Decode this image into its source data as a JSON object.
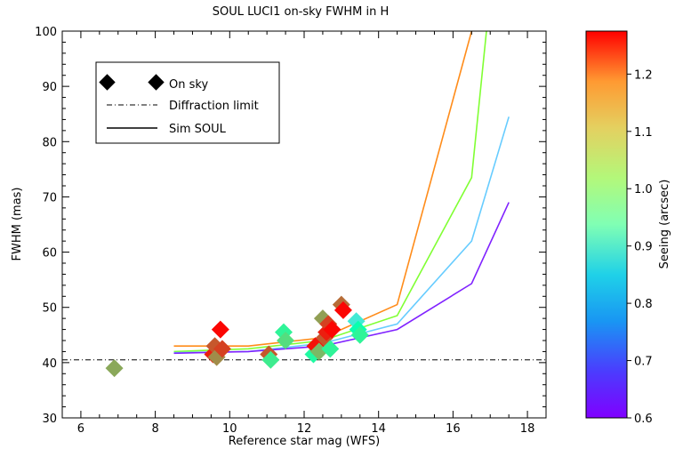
{
  "chart_data": {
    "type": "scatter",
    "title": "SOUL LUCI1 on-sky FWHM in H",
    "xlabel": "Reference star mag (WFS)",
    "ylabel": "FWHM (mas)",
    "xlim": [
      5.5,
      18.5
    ],
    "ylim": [
      30,
      100
    ],
    "xticks": [
      "6",
      "8",
      "10",
      "12",
      "14",
      "16",
      "18"
    ],
    "yticks": [
      "30",
      "40",
      "50",
      "60",
      "70",
      "80",
      "90",
      "100"
    ],
    "diffraction_limit": 40.5,
    "legend": {
      "entries": [
        "On sky",
        "Diffraction limit",
        "Sim SOUL"
      ],
      "placement": "top-left"
    },
    "colorbar": {
      "label": "Seeing (arcsec)",
      "range": [
        0.6,
        1.275
      ],
      "ticks": [
        "0.6",
        "0.7",
        "0.8",
        "0.9",
        "1.0",
        "1.1",
        "1.2"
      ],
      "colormap": "rainbow"
    },
    "sim_series": [
      {
        "seeing": 1.25,
        "color": "#ff8c1a",
        "x": [
          8.5,
          10.5,
          12.5,
          14.5,
          16.5
        ],
        "y": [
          43.0,
          43.0,
          44.5,
          50.5,
          100
        ]
      },
      {
        "seeing": 1.0,
        "color": "#80ff33",
        "x": [
          8.5,
          10.5,
          12.5,
          14.5,
          16.5,
          16.9
        ],
        "y": [
          42.0,
          42.5,
          44.0,
          48.5,
          73.5,
          100
        ]
      },
      {
        "seeing": 0.8,
        "color": "#66ccff",
        "x": [
          8.5,
          10.5,
          12.5,
          14.5,
          16.5,
          17.5
        ],
        "y": [
          41.8,
          42.0,
          43.5,
          47.0,
          62.0,
          84.5
        ]
      },
      {
        "seeing": 0.6,
        "color": "#8022ff",
        "x": [
          8.5,
          10.5,
          12.5,
          14.5,
          16.5,
          17.5
        ],
        "y": [
          41.7,
          42.0,
          43.0,
          46.0,
          54.3,
          69.0
        ]
      }
    ],
    "on_sky_points": [
      {
        "x": 6.9,
        "y": 39.0,
        "seeing": 1.12
      },
      {
        "x": 9.55,
        "y": 41.5,
        "seeing": 1.25
      },
      {
        "x": 9.6,
        "y": 43.0,
        "seeing": 1.2
      },
      {
        "x": 9.65,
        "y": 41.0,
        "seeing": 1.15
      },
      {
        "x": 9.75,
        "y": 46.0,
        "seeing": 1.27
      },
      {
        "x": 9.8,
        "y": 42.5,
        "seeing": 1.22
      },
      {
        "x": 11.05,
        "y": 41.5,
        "seeing": 1.2
      },
      {
        "x": 11.1,
        "y": 40.5,
        "seeing": 1.02
      },
      {
        "x": 11.45,
        "y": 45.5,
        "seeing": 1.0
      },
      {
        "x": 11.5,
        "y": 44.0,
        "seeing": 1.05
      },
      {
        "x": 12.25,
        "y": 41.5,
        "seeing": 0.98
      },
      {
        "x": 12.3,
        "y": 43.0,
        "seeing": 1.26
      },
      {
        "x": 12.4,
        "y": 42.0,
        "seeing": 1.1
      },
      {
        "x": 12.5,
        "y": 48.0,
        "seeing": 1.13
      },
      {
        "x": 12.55,
        "y": 44.5,
        "seeing": 1.2
      },
      {
        "x": 12.6,
        "y": 45.5,
        "seeing": 1.25
      },
      {
        "x": 12.65,
        "y": 47.0,
        "seeing": 1.22
      },
      {
        "x": 12.7,
        "y": 42.5,
        "seeing": 1.0
      },
      {
        "x": 12.75,
        "y": 46.0,
        "seeing": 1.27
      },
      {
        "x": 13.0,
        "y": 50.5,
        "seeing": 1.18
      },
      {
        "x": 13.05,
        "y": 49.5,
        "seeing": 1.27
      },
      {
        "x": 13.4,
        "y": 47.5,
        "seeing": 0.85
      },
      {
        "x": 13.45,
        "y": 46.0,
        "seeing": 0.95
      },
      {
        "x": 13.5,
        "y": 45.0,
        "seeing": 1.0
      }
    ]
  }
}
